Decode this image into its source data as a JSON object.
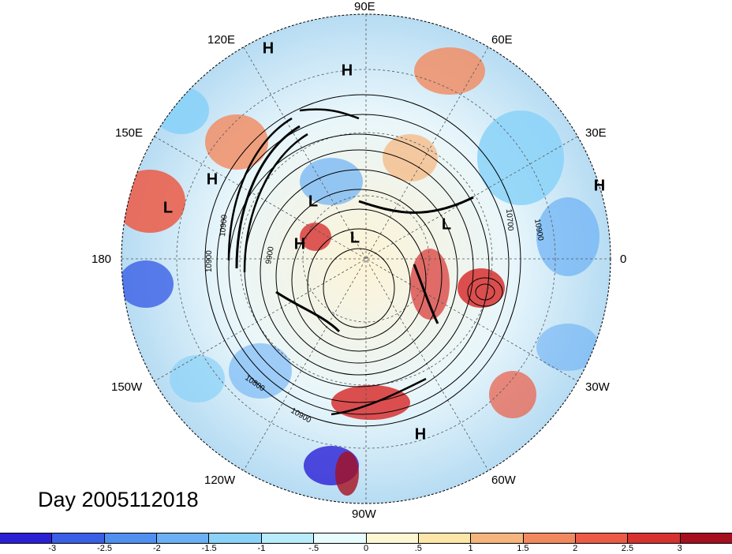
{
  "title": "Day 2005112018",
  "longitude_labels": [
    {
      "name": "lon-90e",
      "text": "90E"
    },
    {
      "name": "lon-60e",
      "text": "60E"
    },
    {
      "name": "lon-30e",
      "text": "30E"
    },
    {
      "name": "lon-0",
      "text": "0"
    },
    {
      "name": "lon-30w",
      "text": "30W"
    },
    {
      "name": "lon-60w",
      "text": "60W"
    },
    {
      "name": "lon-90w",
      "text": "90W"
    },
    {
      "name": "lon-120w",
      "text": "120W"
    },
    {
      "name": "lon-150w",
      "text": "150W"
    },
    {
      "name": "lon-180",
      "text": "180"
    },
    {
      "name": "lon-150e",
      "text": "150E"
    },
    {
      "name": "lon-120e",
      "text": "120E"
    }
  ],
  "pressure_markers": [
    {
      "label": "H"
    },
    {
      "label": "H"
    },
    {
      "label": "H"
    },
    {
      "label": "H"
    },
    {
      "label": "H"
    },
    {
      "label": "H"
    },
    {
      "label": "L"
    },
    {
      "label": "L"
    },
    {
      "label": "L"
    },
    {
      "label": "L"
    }
  ],
  "contour_labels": [
    "10900",
    "10900",
    "9900",
    "10800",
    "10900",
    "10700",
    "10900"
  ],
  "colorbar": {
    "colors": [
      "#2b1fd6",
      "#3a5fe6",
      "#4f8ff0",
      "#6bb0f5",
      "#8ad2f8",
      "#b8ecfb",
      "#e8fbfd",
      "#fdf7d4",
      "#fce6a8",
      "#f6b57c",
      "#f2895e",
      "#ec5b45",
      "#d73030",
      "#a50f1f"
    ],
    "tick_labels": [
      "-3",
      "-2.5",
      "-2",
      "-1.5",
      "-1",
      "-.5",
      "0",
      ".5",
      "1",
      "1.5",
      "2",
      "2.5",
      "3"
    ]
  }
}
